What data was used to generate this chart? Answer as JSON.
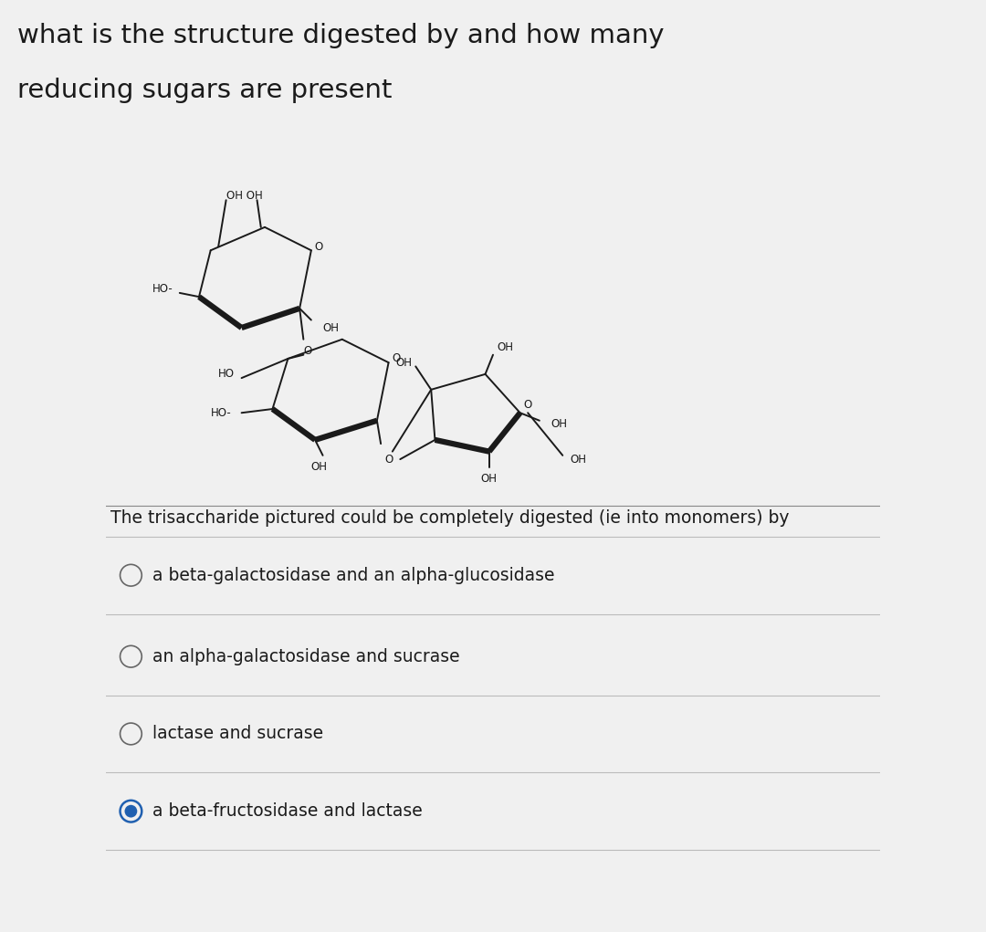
{
  "title_line1": "what is the structure digested by and how many",
  "title_line2": "reducing sugars are present",
  "title_fontsize": 21,
  "title_color": "#1a1a1a",
  "bg_color_top": "#f5f5f5",
  "bg_color_box": "#d4d4d4",
  "question_text": "The trisaccharide pictured could be completely digested (ie into monomers) by",
  "question_fontsize": 13.5,
  "options": [
    {
      "text": "a beta-galactosidase and an alpha-glucosidase",
      "selected": false
    },
    {
      "text": "an alpha-galactosidase and sucrase",
      "selected": false
    },
    {
      "text": "lactase and sucrase",
      "selected": false
    },
    {
      "text": "a beta-fructosidase and lactase",
      "selected": true
    }
  ],
  "option_fontsize": 13.5,
  "circle_color_unselected": "#666666",
  "circle_color_selected": "#2060b0",
  "line_color": "#bbbbbb",
  "structure_color": "#1a1a1a"
}
